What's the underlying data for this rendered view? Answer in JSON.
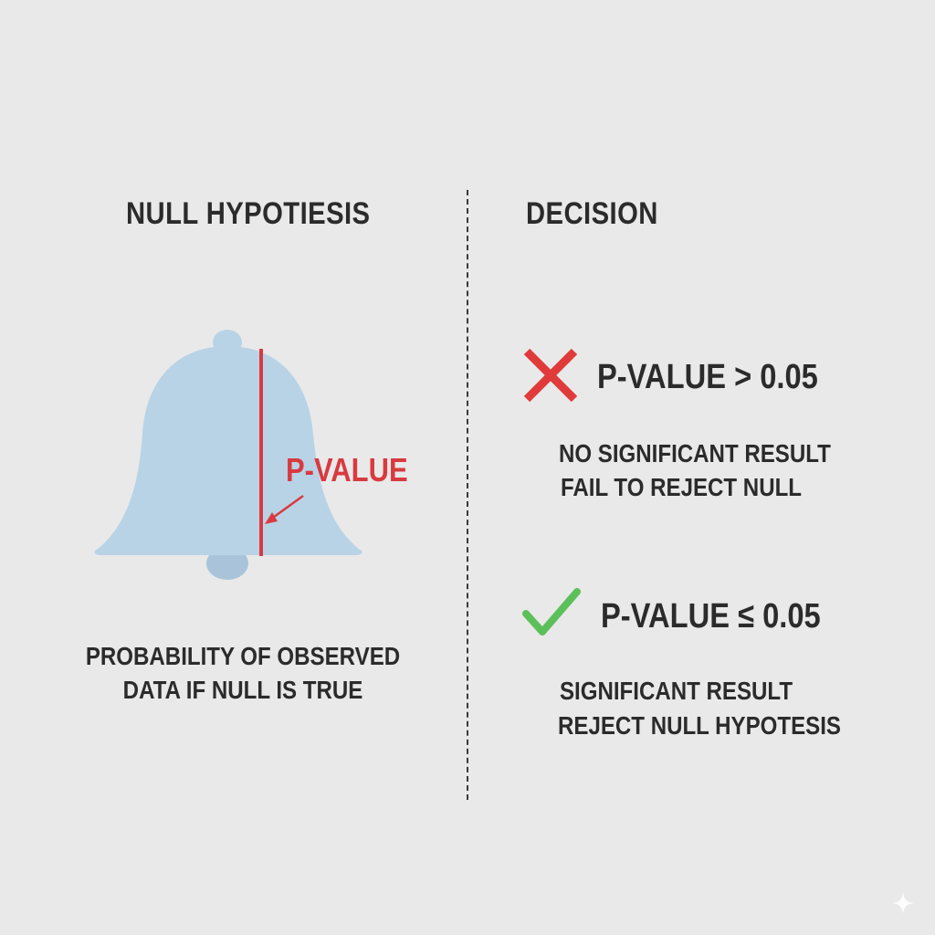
{
  "left_panel": {
    "heading": "NULL HYPOTIESIS",
    "curve_marker_label": "P-VALUE",
    "caption_lines": [
      "PROBABILITY OF OBSERVED",
      "DATA IF NULL IS TRUE"
    ]
  },
  "right_panel": {
    "heading": "DECISION",
    "fail_case": {
      "icon": "red-x-icon",
      "condition": "P-VALUE > 0.05",
      "result_lines": [
        "NO SIGNIFICANT RESULT",
        "FAIL TO REJECT NULL"
      ]
    },
    "pass_case": {
      "icon": "green-check-icon",
      "condition": "P-VALUE ≤ 0.05",
      "result_lines": [
        "SIGNIFICANT RESULT",
        "REJECT NULL HYPOTESIS"
      ]
    }
  },
  "colors": {
    "background": "#e9e9e9",
    "bell_fill": "#b9d3e6",
    "bell_clapper": "#a9c4da",
    "p_value_red": "#d83a3f",
    "x_red": "#e03a3a",
    "check_green": "#5cc05a",
    "text_dark": "#2b2b2b"
  }
}
